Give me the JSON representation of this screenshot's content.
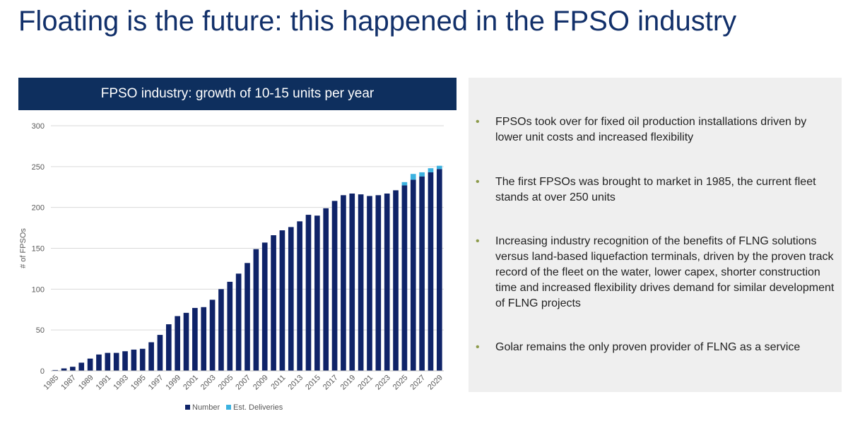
{
  "slide": {
    "title": "Floating is the future: this happened in the FPSO industry"
  },
  "panel": {
    "bullets": [
      "FPSOs took over for fixed oil production installations driven by lower unit costs and increased flexibility",
      "The first FPSOs was brought to market in 1985, the current fleet stands at over 250 units",
      "Increasing industry recognition of the benefits of FLNG solutions versus land-based liquefaction terminals, driven by the proven track record of the fleet on the water, lower capex, shorter construction time and increased flexibility drives demand for similar development of FLNG projects",
      " Golar remains the only proven provider of FLNG as a service"
    ],
    "bullet_symbol": "•"
  },
  "colors": {
    "title": "#12306a",
    "header_bg": "#0e2f5e",
    "number_series": "#0f2368",
    "deliveries_series": "#3cb2e0",
    "bullet": "#8c9a4a",
    "panel_bg": "#efefef"
  },
  "chart_data": {
    "type": "bar",
    "stacked": true,
    "title": "FPSO industry: growth of 10-15 units per year",
    "xlabel": "",
    "ylabel": "# of FPSOs",
    "ylim": [
      0,
      300
    ],
    "yticks": [
      0,
      50,
      100,
      150,
      200,
      250,
      300
    ],
    "grid": true,
    "legend_position": "bottom",
    "categories": [
      "1985",
      "1986",
      "1987",
      "1988",
      "1989",
      "1990",
      "1991",
      "1992",
      "1993",
      "1994",
      "1995",
      "1996",
      "1997",
      "1998",
      "1999",
      "2000",
      "2001",
      "2002",
      "2003",
      "2004",
      "2005",
      "2006",
      "2007",
      "2008",
      "2009",
      "2010",
      "2011",
      "2012",
      "2013",
      "2014",
      "2015",
      "2016",
      "2017",
      "2018",
      "2019",
      "2020",
      "2021",
      "2022",
      "2023",
      "2024",
      "2025",
      "2026",
      "2027",
      "2028",
      "2029"
    ],
    "tick_labels": [
      "1985",
      "1987",
      "1989",
      "1991",
      "1993",
      "1995",
      "1997",
      "1999",
      "2001",
      "2003",
      "2005",
      "2007",
      "2009",
      "2011",
      "2013",
      "2015",
      "2017",
      "2019",
      "2021",
      "2023",
      "2025",
      "2027",
      "2029"
    ],
    "series": [
      {
        "name": "Number",
        "values": [
          1,
          3,
          5,
          10,
          15,
          20,
          22,
          22,
          24,
          26,
          27,
          35,
          44,
          57,
          67,
          71,
          77,
          78,
          87,
          100,
          109,
          119,
          132,
          149,
          157,
          166,
          172,
          176,
          183,
          191,
          190,
          199,
          208,
          215,
          217,
          216,
          214,
          215,
          217,
          221,
          227,
          234,
          238,
          243,
          247
        ]
      },
      {
        "name": "Est. Deliveries",
        "values": [
          0,
          0,
          0,
          0,
          0,
          0,
          0,
          0,
          0,
          0,
          0,
          0,
          0,
          0,
          0,
          0,
          0,
          0,
          0,
          0,
          0,
          0,
          0,
          0,
          0,
          0,
          0,
          0,
          0,
          0,
          0,
          0,
          0,
          0,
          0,
          0,
          0,
          0,
          0,
          0,
          4,
          7,
          5,
          5,
          4
        ]
      }
    ]
  }
}
